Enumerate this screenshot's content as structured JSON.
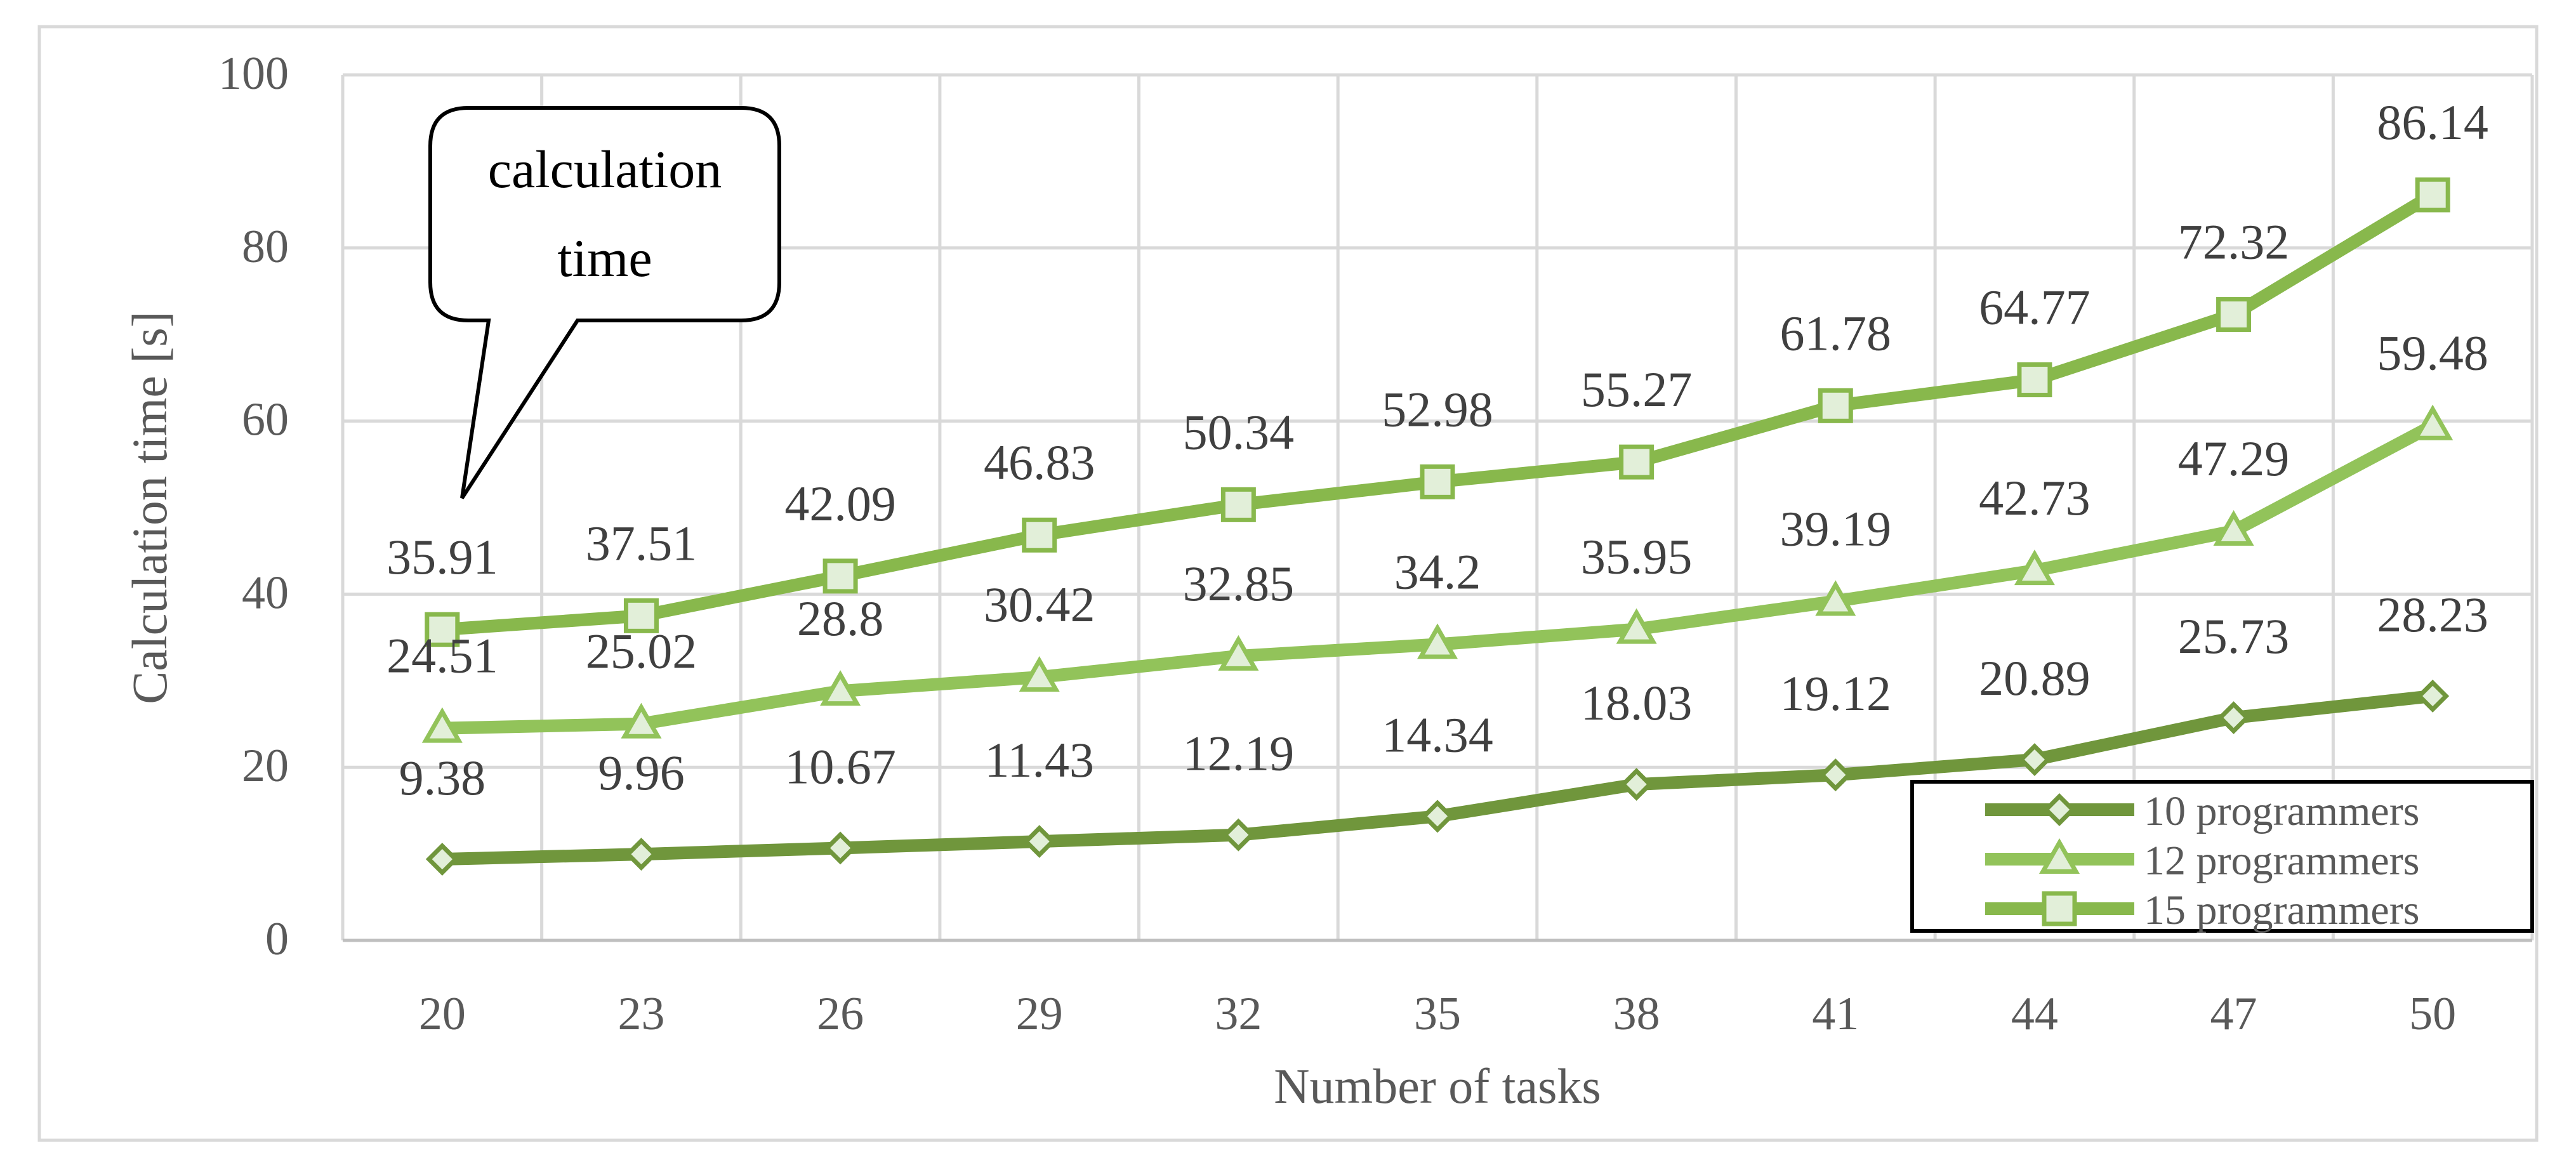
{
  "chart_data": {
    "type": "line",
    "title": "",
    "xlabel": "Number of tasks",
    "ylabel": "Calculation time [s]",
    "categories": [
      "20",
      "23",
      "26",
      "29",
      "32",
      "35",
      "38",
      "41",
      "44",
      "47",
      "50"
    ],
    "ylim": [
      0,
      100
    ],
    "yticks": [
      0,
      20,
      40,
      60,
      80,
      100
    ],
    "grid": true,
    "legend_position": "bottom-right",
    "series": [
      {
        "name": "10 programmers",
        "marker": "diamond",
        "color": "#70963C",
        "values": [
          9.38,
          9.96,
          10.67,
          11.43,
          12.19,
          14.34,
          18.03,
          19.12,
          20.89,
          25.73,
          28.23
        ],
        "labels": [
          "9.38",
          "9.96",
          "10.67",
          "11.43",
          "12.19",
          "14.34",
          "18.03",
          "19.12",
          "20.89",
          "25.73",
          "28.23"
        ]
      },
      {
        "name": "12 programmers",
        "marker": "triangle",
        "color": "#92C35A",
        "values": [
          24.51,
          25.02,
          28.8,
          30.42,
          32.85,
          34.2,
          35.95,
          39.19,
          42.73,
          47.29,
          59.48
        ],
        "labels": [
          "24.51",
          "25.02",
          "28.8",
          "30.42",
          "32.85",
          "34.2",
          "35.95",
          "39.19",
          "42.73",
          "47.29",
          "59.48"
        ]
      },
      {
        "name": "15 programmers",
        "marker": "square",
        "color": "#88B84C",
        "values": [
          35.91,
          37.51,
          42.09,
          46.83,
          50.34,
          52.98,
          55.27,
          61.78,
          64.77,
          72.32,
          86.14
        ],
        "labels": [
          "35.91",
          "37.51",
          "42.09",
          "46.83",
          "50.34",
          "52.98",
          "55.27",
          "61.78",
          "64.77",
          "72.32",
          "86.14"
        ]
      }
    ],
    "annotations": [
      {
        "text_lines": [
          "calculation",
          "time"
        ],
        "points_to_series": 2,
        "points_to_index": 0
      }
    ]
  },
  "colors": {
    "grid": "#D9D9D9",
    "text": "#595959",
    "label_text": "#404040",
    "marker_fill": "#E2EFD9"
  }
}
